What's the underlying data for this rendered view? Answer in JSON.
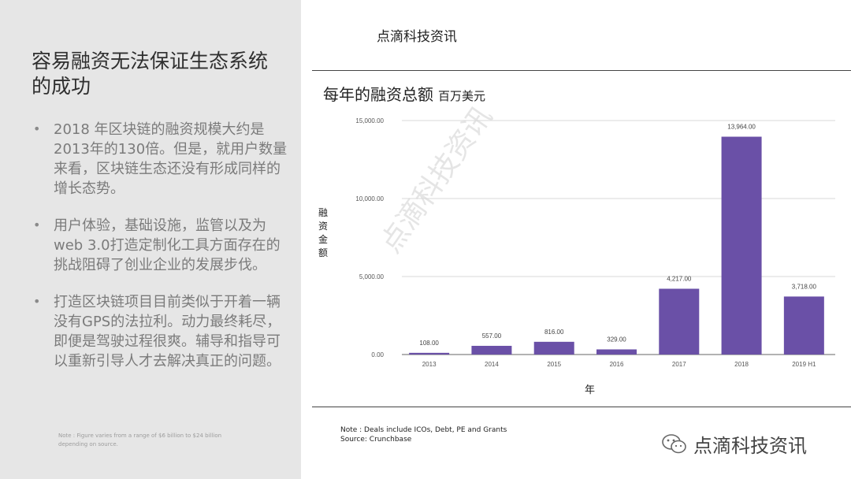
{
  "slide": {
    "title": "容易融资无法保证生态系统的成功",
    "bullets": [
      "2018 年区块链的融资规模大约是2013年的130倍。但是，就用户数量来看，区块链生态还没有形成同样的增长态势。",
      "用户体验，基础设施，监管以及为web 3.0打造定制化工具方面存在的挑战阻碍了创业企业的发展步伐。",
      "打造区块链项目目前类似于开着一辆没有GPS的法拉利。动力最终耗尽，即便是驾驶过程很爽。辅导和指导可以重新引导人才去解决真正的问题。"
    ],
    "bullet_symbol": "•",
    "note": "Note : Figure varies from a range of $6 billion to $24 billion depending on source.",
    "bar_color": "#6a50a7",
    "panel_color": "#e6e6e6"
  },
  "header": {
    "text": "点滴科技资讯"
  },
  "chart_data": {
    "type": "bar",
    "title": "每年的融资总额",
    "unit": "百万美元",
    "xlabel": "年",
    "ylabel": "融资金额",
    "categories": [
      "2013",
      "2014",
      "2015",
      "2016",
      "2017",
      "2018",
      "2019 H1"
    ],
    "values": [
      108,
      557,
      816,
      329,
      4217,
      13964,
      3718
    ],
    "value_labels": [
      "108.00",
      "557.00",
      "816.00",
      "329.00",
      "4,217.00",
      "13,964.00",
      "3,718.00"
    ],
    "yticks": [
      0,
      5000,
      10000,
      15000
    ],
    "ytick_labels": [
      "0.00",
      "5,000.00",
      "10,000.00",
      "15,000.00"
    ],
    "ylim": [
      0,
      15000
    ],
    "grid": true
  },
  "source_note": {
    "line1": "Note : Deals include ICOs, Debt, PE and Grants",
    "line2": "Source: Crunchbase"
  },
  "watermark": "点滴科技资讯",
  "brand": {
    "text": "点滴科技资讯",
    "icon": "wechat-icon"
  }
}
